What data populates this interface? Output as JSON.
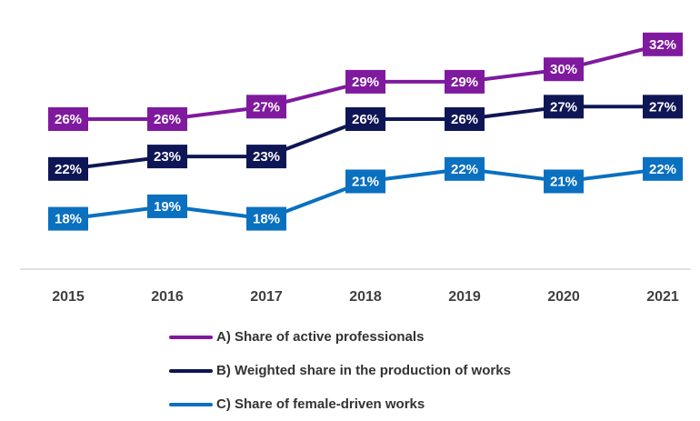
{
  "chart_data": {
    "type": "line",
    "x": [
      "2015",
      "2016",
      "2017",
      "2018",
      "2019",
      "2020",
      "2021"
    ],
    "ylim": [
      10,
      35
    ],
    "grid": false,
    "legend_position": "bottom",
    "series": [
      {
        "name": "A) Share of active professionals",
        "values": [
          26,
          26,
          27,
          29,
          29,
          30,
          32
        ],
        "labels": [
          "26%",
          "26%",
          "27%",
          "29%",
          "29%",
          "30%",
          "32%"
        ],
        "color": "#7F1A9E"
      },
      {
        "name": "B) Weighted share in the production of works",
        "values": [
          22,
          23,
          23,
          26,
          26,
          27,
          27
        ],
        "labels": [
          "22%",
          "23%",
          "23%",
          "26%",
          "26%",
          "27%",
          "27%"
        ],
        "color": "#0F1655"
      },
      {
        "name": "C) Share of female-driven works",
        "values": [
          18,
          19,
          18,
          21,
          22,
          21,
          22
        ],
        "labels": [
          "18%",
          "19%",
          "18%",
          "21%",
          "22%",
          "21%",
          "22%"
        ],
        "color": "#0A70C0"
      }
    ]
  }
}
